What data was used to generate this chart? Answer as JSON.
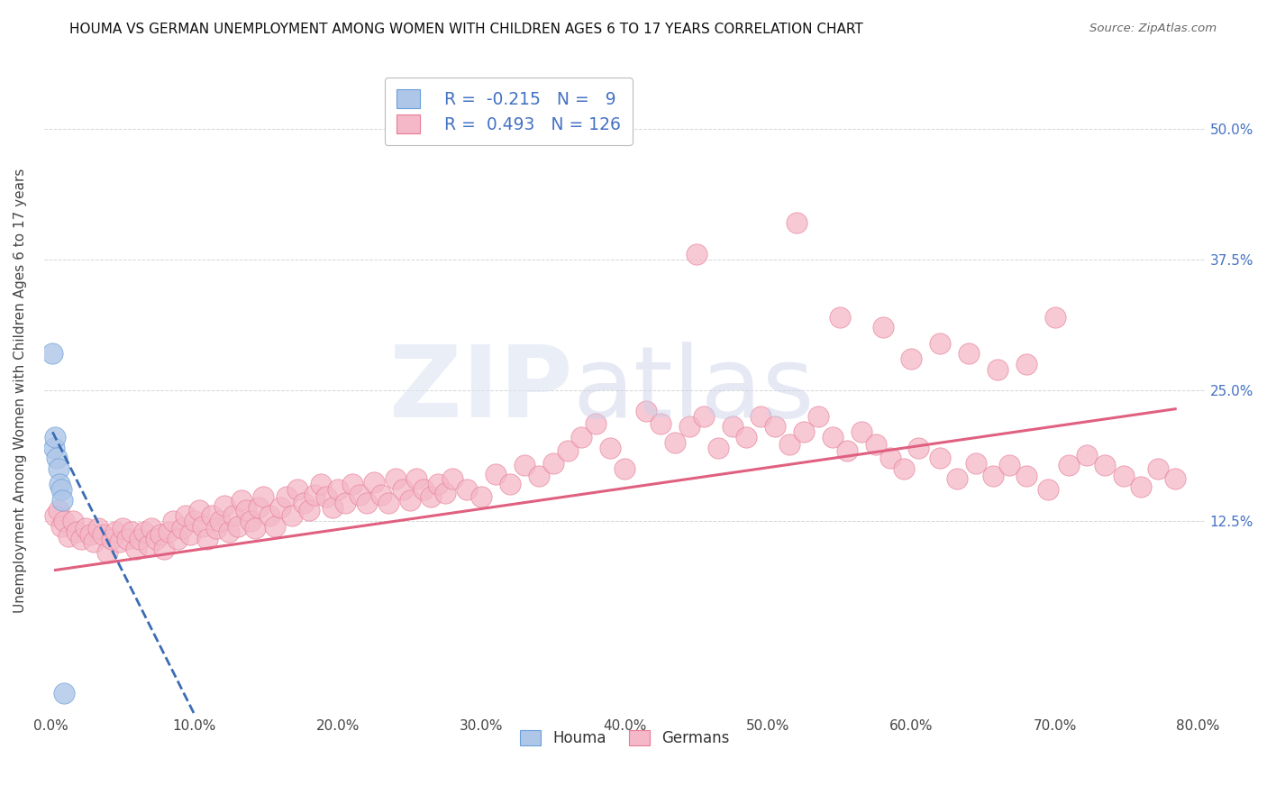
{
  "title": "HOUMA VS GERMAN UNEMPLOYMENT AMONG WOMEN WITH CHILDREN AGES 6 TO 17 YEARS CORRELATION CHART",
  "source": "Source: ZipAtlas.com",
  "ylabel": "Unemployment Among Women with Children Ages 6 to 17 years",
  "xlim": [
    -0.005,
    0.805
  ],
  "ylim": [
    -0.06,
    0.56
  ],
  "xticks": [
    0.0,
    0.1,
    0.2,
    0.3,
    0.4,
    0.5,
    0.6,
    0.7,
    0.8
  ],
  "xticklabels": [
    "0.0%",
    "10.0%",
    "20.0%",
    "30.0%",
    "40.0%",
    "50.0%",
    "60.0%",
    "70.0%",
    "80.0%"
  ],
  "yticks_right": [
    0.125,
    0.25,
    0.375,
    0.5
  ],
  "yticks_right_labels": [
    "12.5%",
    "25.0%",
    "37.5%",
    "50.0%"
  ],
  "houma_R": -0.215,
  "houma_N": 9,
  "german_R": 0.493,
  "german_N": 126,
  "houma_color": "#aec6e8",
  "german_color": "#f4b8c8",
  "houma_edge_color": "#6a9fd8",
  "german_edge_color": "#e87d96",
  "houma_line_color": "#3a6cb5",
  "german_line_color": "#e06080",
  "legend_label_houma": "Houma",
  "legend_label_german": "Germans",
  "houma_x": [
    0.001,
    0.002,
    0.003,
    0.004,
    0.005,
    0.006,
    0.007,
    0.008,
    0.009
  ],
  "houma_y": [
    0.285,
    0.195,
    0.205,
    0.185,
    0.175,
    0.16,
    0.155,
    0.145,
    -0.04
  ],
  "german_x": [
    0.003,
    0.005,
    0.007,
    0.009,
    0.012,
    0.015,
    0.018,
    0.021,
    0.024,
    0.027,
    0.03,
    0.033,
    0.036,
    0.039,
    0.042,
    0.045,
    0.048,
    0.05,
    0.053,
    0.056,
    0.059,
    0.062,
    0.065,
    0.068,
    0.07,
    0.073,
    0.076,
    0.079,
    0.082,
    0.085,
    0.088,
    0.091,
    0.094,
    0.097,
    0.1,
    0.103,
    0.106,
    0.109,
    0.112,
    0.115,
    0.118,
    0.121,
    0.124,
    0.127,
    0.13,
    0.133,
    0.136,
    0.139,
    0.142,
    0.145,
    0.148,
    0.152,
    0.156,
    0.16,
    0.164,
    0.168,
    0.172,
    0.176,
    0.18,
    0.184,
    0.188,
    0.192,
    0.196,
    0.2,
    0.205,
    0.21,
    0.215,
    0.22,
    0.225,
    0.23,
    0.235,
    0.24,
    0.245,
    0.25,
    0.255,
    0.26,
    0.265,
    0.27,
    0.275,
    0.28,
    0.29,
    0.3,
    0.31,
    0.32,
    0.33,
    0.34,
    0.35,
    0.36,
    0.37,
    0.38,
    0.39,
    0.4,
    0.415,
    0.425,
    0.435,
    0.445,
    0.455,
    0.465,
    0.475,
    0.485,
    0.495,
    0.505,
    0.515,
    0.525,
    0.535,
    0.545,
    0.555,
    0.565,
    0.575,
    0.585,
    0.595,
    0.605,
    0.62,
    0.632,
    0.645,
    0.657,
    0.668,
    0.68,
    0.695,
    0.71,
    0.722,
    0.735,
    0.748,
    0.76,
    0.772,
    0.784
  ],
  "german_y": [
    0.13,
    0.135,
    0.12,
    0.125,
    0.11,
    0.125,
    0.115,
    0.108,
    0.118,
    0.112,
    0.105,
    0.118,
    0.112,
    0.095,
    0.108,
    0.115,
    0.105,
    0.118,
    0.108,
    0.115,
    0.098,
    0.108,
    0.115,
    0.102,
    0.118,
    0.108,
    0.112,
    0.098,
    0.115,
    0.125,
    0.108,
    0.118,
    0.13,
    0.112,
    0.125,
    0.135,
    0.12,
    0.108,
    0.13,
    0.118,
    0.125,
    0.14,
    0.115,
    0.13,
    0.12,
    0.145,
    0.135,
    0.125,
    0.118,
    0.138,
    0.148,
    0.13,
    0.12,
    0.138,
    0.148,
    0.13,
    0.155,
    0.142,
    0.135,
    0.15,
    0.16,
    0.148,
    0.138,
    0.155,
    0.142,
    0.16,
    0.15,
    0.142,
    0.162,
    0.15,
    0.142,
    0.165,
    0.155,
    0.145,
    0.165,
    0.155,
    0.148,
    0.16,
    0.152,
    0.165,
    0.155,
    0.148,
    0.17,
    0.16,
    0.178,
    0.168,
    0.18,
    0.192,
    0.205,
    0.218,
    0.195,
    0.175,
    0.23,
    0.218,
    0.2,
    0.215,
    0.225,
    0.195,
    0.215,
    0.205,
    0.225,
    0.215,
    0.198,
    0.21,
    0.225,
    0.205,
    0.192,
    0.21,
    0.198,
    0.185,
    0.175,
    0.195,
    0.185,
    0.165,
    0.18,
    0.168,
    0.178,
    0.168,
    0.155,
    0.178,
    0.188,
    0.178,
    0.168,
    0.158,
    0.175,
    0.165
  ],
  "german_outlier_x": [
    0.45,
    0.52,
    0.55,
    0.58,
    0.6,
    0.62,
    0.64,
    0.66,
    0.68,
    0.7
  ],
  "german_outlier_y": [
    0.38,
    0.41,
    0.32,
    0.31,
    0.28,
    0.295,
    0.285,
    0.27,
    0.275,
    0.32
  ],
  "trend_german_x0": 0.003,
  "trend_german_x1": 0.784,
  "trend_german_y0": 0.078,
  "trend_german_y1": 0.232,
  "trend_houma_x0": 0.001,
  "trend_houma_x1": 0.1,
  "trend_houma_y0": 0.21,
  "trend_houma_y1": -0.06
}
